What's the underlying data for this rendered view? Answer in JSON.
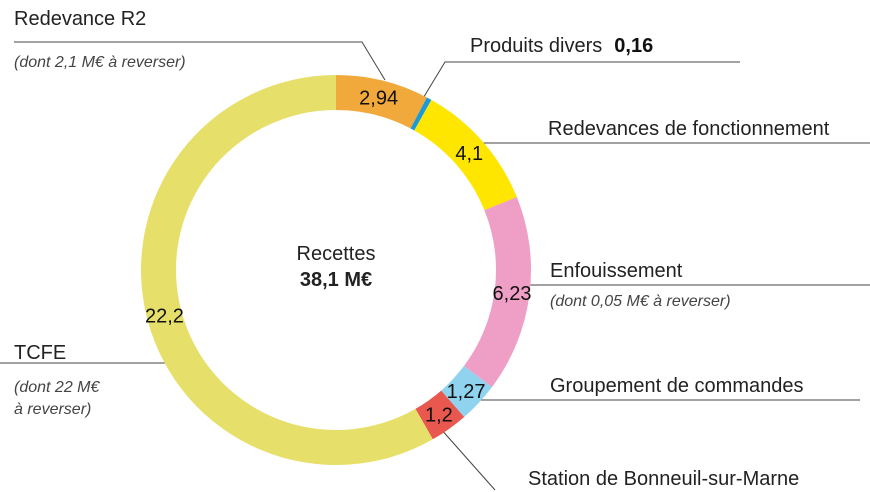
{
  "chart_data": {
    "type": "donut",
    "center_label": "Recettes",
    "total_label": "38,1 M€",
    "categories": [
      "Redevance R2",
      "Produits divers",
      "Redevances de fonctionnement",
      "Enfouissement",
      "Groupement de commandes",
      "Station de Bonneuil-sur-Marne",
      "TCFE"
    ],
    "values": [
      2.94,
      0.16,
      4.1,
      6.23,
      1.27,
      1.2,
      22.2
    ],
    "value_labels": [
      "2,94",
      "0,16",
      "4,1",
      "6,23",
      "1,27",
      "1,2",
      "22,2"
    ],
    "colors": [
      "#f2a93b",
      "#1a9ad6",
      "#ffe600",
      "#ef9ec6",
      "#8fd3ef",
      "#e8584f",
      "#e6e06a"
    ],
    "notes": [
      [
        "(dont 2,1 M€ à reverser)"
      ],
      [],
      [],
      [
        "(dont 0,05 M€ à reverser)"
      ],
      [],
      [],
      [
        "(dont 22 M€",
        "à reverser)"
      ]
    ]
  }
}
